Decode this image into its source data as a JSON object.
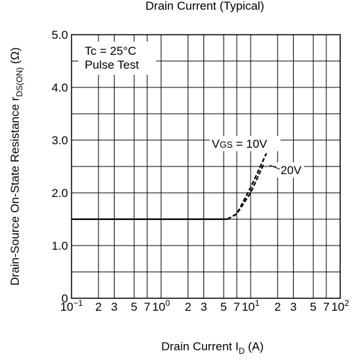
{
  "chart_data": {
    "type": "line",
    "title": "Drain Current  (Typical)",
    "x_label": {
      "text": "Drain Current   I",
      "sub": "D",
      "after": "  (A)"
    },
    "y_label": {
      "text": "Drain-Source On-State Resistance  r",
      "sub": "DS(ON)",
      "after": "  (Ω)"
    },
    "annotations": [
      "Tc = 25°C",
      "Pulse Test"
    ],
    "log_x": true,
    "grid": true,
    "xlim": [
      0.1,
      100
    ],
    "ylim": [
      0,
      5
    ],
    "xticks": [
      {
        "value": 0.1,
        "label": "10",
        "exponent": "−1"
      },
      {
        "value": 0.2,
        "label": "2"
      },
      {
        "value": 0.3,
        "label": "3"
      },
      {
        "value": 0.5,
        "label": "5"
      },
      {
        "value": 0.7,
        "label": "7"
      },
      {
        "value": 1,
        "label": "10",
        "exponent": "0"
      },
      {
        "value": 2,
        "label": "2"
      },
      {
        "value": 3,
        "label": "3"
      },
      {
        "value": 5,
        "label": "5"
      },
      {
        "value": 7,
        "label": "7"
      },
      {
        "value": 10,
        "label": "10",
        "exponent": "1"
      },
      {
        "value": 20,
        "label": "2"
      },
      {
        "value": 30,
        "label": "3"
      },
      {
        "value": 50,
        "label": "5"
      },
      {
        "value": 70,
        "label": "7"
      },
      {
        "value": 100,
        "label": "10",
        "exponent": "2"
      }
    ],
    "yticks": [
      {
        "value": 0,
        "label": "0"
      },
      {
        "value": 1,
        "label": "1.0"
      },
      {
        "value": 2,
        "label": "2.0"
      },
      {
        "value": 3,
        "label": "3.0"
      },
      {
        "value": 4,
        "label": "4.0"
      },
      {
        "value": 5,
        "label": "5.0"
      }
    ],
    "yminor": [
      0.5,
      1.5,
      2.5,
      3.5,
      4.5
    ],
    "series": [
      {
        "color": "#000000",
        "dash": false,
        "x": [
          0.1,
          5.5
        ],
        "values": [
          1.5,
          1.5
        ]
      },
      {
        "name": {
          "text": "V",
          "sub": "GS",
          "after": " = 10V"
        },
        "color": "#000000",
        "dash": true,
        "x": [
          5.5,
          7,
          10,
          15
        ],
        "values": [
          1.5,
          1.6,
          2.1,
          2.75
        ]
      },
      {
        "name": {
          "text": "20V"
        },
        "color": "#000000",
        "dash": true,
        "x": [
          5.5,
          7,
          10,
          14
        ],
        "values": [
          1.5,
          1.6,
          2.0,
          2.55
        ]
      }
    ]
  }
}
